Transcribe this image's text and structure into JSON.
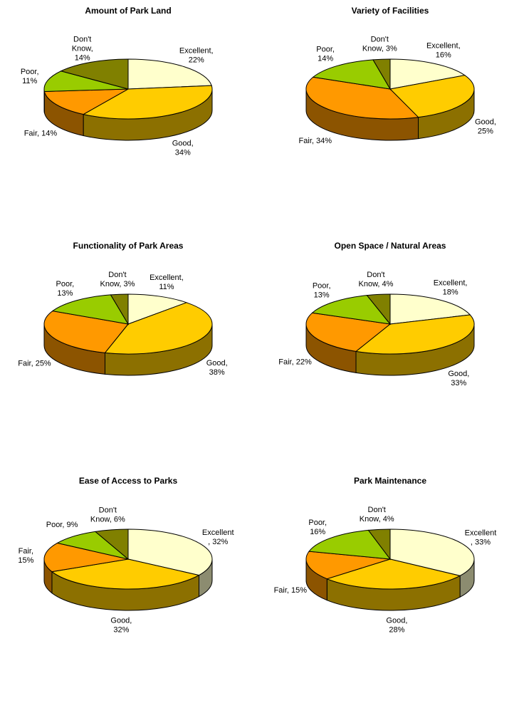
{
  "chart_data": [
    {
      "type": "pie",
      "title": "Amount of Park Land",
      "values": [
        22,
        34,
        14,
        11,
        14
      ],
      "value_labels": [
        [
          "Excellent,",
          "22%"
        ],
        [
          "Good,",
          "34%"
        ],
        [
          "Fair, 14%"
        ],
        [
          "Poor,",
          "11%"
        ],
        [
          "Don't",
          "Know,",
          "14%"
        ]
      ],
      "colors": [
        "#ffffcc",
        "#ffcc00",
        "#ff9900",
        "#99cc00",
        "#808000"
      ]
    },
    {
      "type": "pie",
      "title": "Variety of Facilities",
      "values": [
        16,
        25,
        34,
        14,
        3
      ],
      "value_labels": [
        [
          "Excellent,",
          "16%"
        ],
        [
          "Good,",
          "25%"
        ],
        [
          "Fair, 34%"
        ],
        [
          "Poor,",
          "14%"
        ],
        [
          "Don't",
          "Know, 3%"
        ]
      ],
      "colors": [
        "#ffffcc",
        "#ffcc00",
        "#ff9900",
        "#99cc00",
        "#808000"
      ]
    },
    {
      "type": "pie",
      "title": "Functionality of Park Areas",
      "values": [
        11,
        38,
        25,
        13,
        3
      ],
      "value_labels": [
        [
          "Excellent,",
          "11%"
        ],
        [
          "Good,",
          "38%"
        ],
        [
          "Fair, 25%"
        ],
        [
          "Poor,",
          "13%"
        ],
        [
          "Don't",
          "Know, 3%"
        ]
      ],
      "colors": [
        "#ffffcc",
        "#ffcc00",
        "#ff9900",
        "#99cc00",
        "#808000"
      ]
    },
    {
      "type": "pie",
      "title": "Open Space / Natural Areas",
      "values": [
        18,
        33,
        22,
        13,
        4
      ],
      "value_labels": [
        [
          "Excellent,",
          "18%"
        ],
        [
          "Good,",
          "33%"
        ],
        [
          "Fair, 22%"
        ],
        [
          "Poor,",
          "13%"
        ],
        [
          "Don't",
          "Know, 4%"
        ]
      ],
      "colors": [
        "#ffffcc",
        "#ffcc00",
        "#ff9900",
        "#99cc00",
        "#808000"
      ]
    },
    {
      "type": "pie",
      "title": "Ease of Access to Parks",
      "values": [
        32,
        32,
        15,
        9,
        6
      ],
      "value_labels": [
        [
          "Excellent",
          ", 32%"
        ],
        [
          "Good,",
          "32%"
        ],
        [
          "Fair,",
          "15%"
        ],
        [
          "Poor, 9%"
        ],
        [
          "Don't",
          "Know, 6%"
        ]
      ],
      "colors": [
        "#ffffcc",
        "#ffcc00",
        "#ff9900",
        "#99cc00",
        "#808000"
      ]
    },
    {
      "type": "pie",
      "title": "Park Maintenance",
      "values": [
        33,
        28,
        15,
        16,
        4
      ],
      "value_labels": [
        [
          "Excellent",
          ", 33%"
        ],
        [
          "Good,",
          "28%"
        ],
        [
          "Fair, 15%"
        ],
        [
          "Poor,",
          "16%"
        ],
        [
          "Don't",
          "Know, 4%"
        ]
      ],
      "colors": [
        "#ffffcc",
        "#ffcc00",
        "#ff9900",
        "#99cc00",
        "#808000"
      ]
    }
  ]
}
